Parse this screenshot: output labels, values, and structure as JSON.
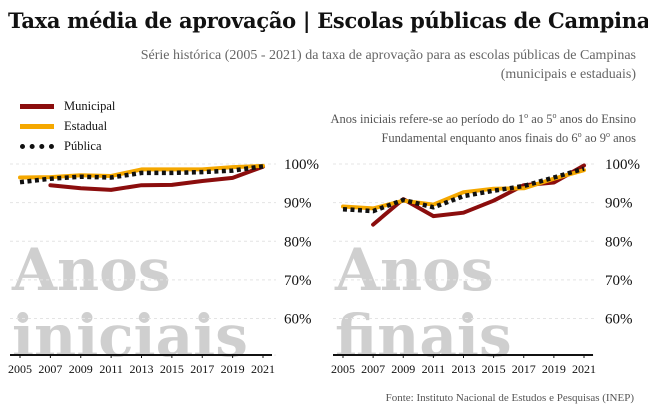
{
  "title": "Taxa média de aprovação | Escolas públicas de Campinas",
  "subtitle": "Série histórica (2005 - 2021) da taxa de aprovação para as escolas públicas de Campinas (municipais e estaduais)",
  "note_line1_pre": "Anos iniciais refere-se ao período do 1",
  "note_sup1": "o",
  "note_line1_mid": " ao 5",
  "note_sup2": "o",
  "note_line1_post": " anos do Ensino",
  "note_line2_pre": "Fundamental enquanto anos finais do 6",
  "note_sup3": "o",
  "note_line2_mid": " ao 9",
  "note_sup4": "o",
  "note_line2_post": " anos",
  "caption": "Fonte: Instituto Nacional de Estudos e Pesquisas (INEP)",
  "legend": [
    {
      "label": "Municipal",
      "color": "#8b0d0d",
      "style": "solid"
    },
    {
      "label": "Estadual",
      "color": "#f5a800",
      "style": "solid"
    },
    {
      "label": "Pública",
      "color": "#111111",
      "style": "dotted"
    }
  ],
  "chart_data": [
    {
      "type": "line",
      "panel_label": "Anos iniciais",
      "x_ticks": [
        "2005",
        "2007",
        "2009",
        "2011",
        "2013",
        "2015",
        "2017",
        "2019",
        "2021"
      ],
      "y_ticks": [
        "100%",
        "90%",
        "80%",
        "70%",
        "60%"
      ],
      "ylim": [
        50,
        100
      ],
      "series": [
        {
          "name": "Municipal",
          "color": "#8b0d0d",
          "x": [
            2007,
            2009,
            2011,
            2013,
            2015,
            2017,
            2019,
            2021
          ],
          "values": [
            94.5,
            93.7,
            93.3,
            94.5,
            94.6,
            95.6,
            96.4,
            99.3
          ]
        },
        {
          "name": "Estadual",
          "color": "#f5a800",
          "x": [
            2005,
            2007,
            2009,
            2011,
            2013,
            2015,
            2017,
            2019,
            2021
          ],
          "values": [
            96.5,
            96.6,
            97.1,
            96.9,
            98.6,
            98.6,
            98.6,
            99.2,
            99.5
          ]
        },
        {
          "name": "Pública",
          "color": "#111111",
          "x": [
            2005,
            2007,
            2009,
            2011,
            2013,
            2015,
            2017,
            2019,
            2021
          ],
          "values": [
            95.3,
            96.2,
            96.7,
            96.5,
            97.7,
            97.7,
            97.9,
            98.3,
            99.4
          ]
        }
      ]
    },
    {
      "type": "line",
      "panel_label": "Anos finais",
      "x_ticks": [
        "2005",
        "2007",
        "2009",
        "2011",
        "2013",
        "2015",
        "2017",
        "2019",
        "2021"
      ],
      "y_ticks": [
        "100%",
        "90%",
        "80%",
        "70%",
        "60%"
      ],
      "ylim": [
        50,
        100
      ],
      "series": [
        {
          "name": "Municipal",
          "color": "#8b0d0d",
          "x": [
            2007,
            2009,
            2011,
            2013,
            2015,
            2017,
            2019,
            2021
          ],
          "values": [
            84.3,
            90.9,
            86.5,
            87.4,
            90.5,
            94.5,
            95.2,
            99.6
          ]
        },
        {
          "name": "Estadual",
          "color": "#f5a800",
          "x": [
            2005,
            2007,
            2009,
            2011,
            2013,
            2015,
            2017,
            2019,
            2021
          ],
          "values": [
            89.0,
            88.5,
            90.5,
            89.5,
            92.7,
            93.6,
            93.7,
            96.2,
            98.4
          ]
        },
        {
          "name": "Pública",
          "color": "#111111",
          "x": [
            2005,
            2007,
            2009,
            2011,
            2013,
            2015,
            2017,
            2019,
            2021
          ],
          "values": [
            88.3,
            87.8,
            90.7,
            88.8,
            91.7,
            93.1,
            94.3,
            96.5,
            98.8
          ]
        }
      ]
    }
  ]
}
